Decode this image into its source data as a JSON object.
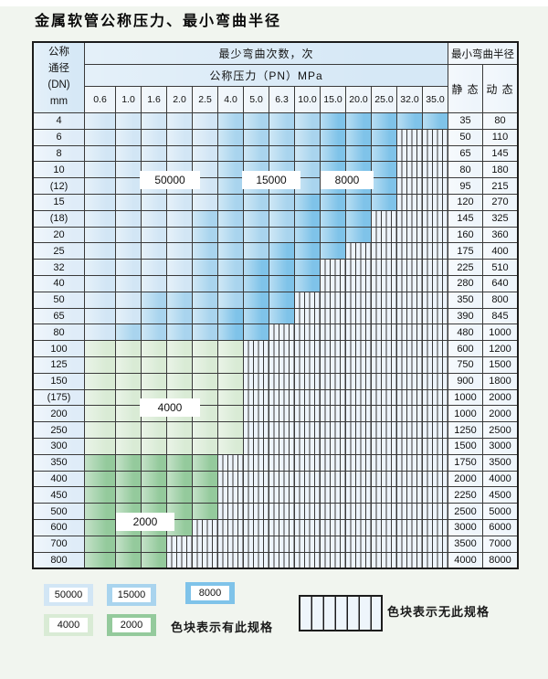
{
  "title": "金属软管公称压力、最小弯曲半径",
  "table": {
    "corner_lines": [
      "公称",
      "通径",
      "(DN)",
      "mm"
    ],
    "bend_times_header": "最少弯曲次数，次",
    "pressure_header": "公称压力（PN）MPa",
    "pressure_columns": [
      "0.6",
      "1.0",
      "1.6",
      "2.0",
      "2.5",
      "4.0",
      "5.0",
      "6.3",
      "10.0",
      "15.0",
      "20.0",
      "25.0",
      "32.0",
      "35.0"
    ],
    "radius_header": "最小弯曲半径",
    "static_header": "静 态",
    "dynamic_header": "动 态",
    "rows": [
      {
        "dn": "4",
        "static": "35",
        "dynamic": "80",
        "bands": {
          "b50": 4,
          "b15": 8,
          "b8": 13
        }
      },
      {
        "dn": "6",
        "static": "50",
        "dynamic": "110",
        "bands": {
          "b50": 4,
          "b15": 8,
          "b8": 11
        }
      },
      {
        "dn": "8",
        "static": "65",
        "dynamic": "145",
        "bands": {
          "b50": 4,
          "b15": 8,
          "b8": 11
        }
      },
      {
        "dn": "10",
        "static": "80",
        "dynamic": "180",
        "bands": {
          "b50": 4,
          "b15": 8,
          "b8": 11
        }
      },
      {
        "dn": "(12)",
        "static": "95",
        "dynamic": "215",
        "bands": {
          "b50": 4,
          "b15": 8,
          "b8": 11
        }
      },
      {
        "dn": "15",
        "static": "120",
        "dynamic": "270",
        "bands": {
          "b50": 4,
          "b15": 7,
          "b8": 11
        }
      },
      {
        "dn": "(18)",
        "static": "145",
        "dynamic": "325",
        "bands": {
          "b50": 3,
          "b15": 7,
          "b8": 10
        }
      },
      {
        "dn": "20",
        "static": "160",
        "dynamic": "360",
        "bands": {
          "b50": 3,
          "b15": 7,
          "b8": 10
        }
      },
      {
        "dn": "25",
        "static": "175",
        "dynamic": "400",
        "bands": {
          "b50": 3,
          "b15": 6,
          "b8": 9
        }
      },
      {
        "dn": "32",
        "static": "225",
        "dynamic": "510",
        "bands": {
          "b50": 3,
          "b15": 5,
          "b8": 8
        }
      },
      {
        "dn": "40",
        "static": "280",
        "dynamic": "640",
        "bands": {
          "b50": 3,
          "b15": 5,
          "b8": 8
        }
      },
      {
        "dn": "50",
        "static": "350",
        "dynamic": "800",
        "bands": {
          "b50": 1,
          "b15": 5,
          "b8": 7
        }
      },
      {
        "dn": "65",
        "static": "390",
        "dynamic": "845",
        "bands": {
          "b50": 1,
          "b15": 4,
          "b8": 7
        }
      },
      {
        "dn": "80",
        "static": "480",
        "dynamic": "1000",
        "bands": {
          "b50": 0,
          "b15": 4,
          "b8": 6
        }
      },
      {
        "dn": "100",
        "static": "600",
        "dynamic": "1200",
        "bands": {
          "b4": 5
        }
      },
      {
        "dn": "125",
        "static": "750",
        "dynamic": "1500",
        "bands": {
          "b4": 5
        }
      },
      {
        "dn": "150",
        "static": "900",
        "dynamic": "1800",
        "bands": {
          "b4": 5
        }
      },
      {
        "dn": "(175)",
        "static": "1000",
        "dynamic": "2000",
        "bands": {
          "b4": 5
        }
      },
      {
        "dn": "200",
        "static": "1000",
        "dynamic": "2000",
        "bands": {
          "b4": 5
        }
      },
      {
        "dn": "250",
        "static": "1250",
        "dynamic": "2500",
        "bands": {
          "b4": 5
        }
      },
      {
        "dn": "300",
        "static": "1500",
        "dynamic": "3000",
        "bands": {
          "b4": 5
        }
      },
      {
        "dn": "350",
        "static": "1750",
        "dynamic": "3500",
        "bands": {
          "b2": 4
        }
      },
      {
        "dn": "400",
        "static": "2000",
        "dynamic": "4000",
        "bands": {
          "b2": 4
        }
      },
      {
        "dn": "450",
        "static": "2250",
        "dynamic": "4500",
        "bands": {
          "b2": 4
        }
      },
      {
        "dn": "500",
        "static": "2500",
        "dynamic": "5000",
        "bands": {
          "b2": 4
        }
      },
      {
        "dn": "600",
        "static": "3000",
        "dynamic": "6000",
        "bands": {
          "b2": 3
        }
      },
      {
        "dn": "700",
        "static": "3500",
        "dynamic": "7000",
        "bands": {
          "b2": 2
        }
      },
      {
        "dn": "800",
        "static": "4000",
        "dynamic": "8000",
        "bands": {
          "b2": 2
        }
      }
    ]
  },
  "zone_labels": [
    {
      "text": "50000"
    },
    {
      "text": "15000"
    },
    {
      "text": "8000"
    },
    {
      "text": "4000"
    },
    {
      "text": "2000"
    }
  ],
  "legend": {
    "swatches": [
      {
        "label": "50000",
        "color_key": "s50"
      },
      {
        "label": "15000",
        "color_key": "s15"
      },
      {
        "label": "8000",
        "color_key": "s8"
      },
      {
        "label": "4000",
        "color_key": "g4"
      },
      {
        "label": "2000",
        "color_key": "g2"
      }
    ],
    "has_spec_text": "色块表示有此规格",
    "no_spec_text": "色块表示无此规格"
  },
  "colors": {
    "s50": "#d2e6f5",
    "s15": "#a9d4ee",
    "s8": "#7fc3e9",
    "g4": "#d9ebd5",
    "g2": "#94ca9c",
    "hatch_bg": "#edf4fb",
    "header_bg": "#d6e8f6",
    "subheader_bg": "#edf4fa",
    "rowlabel_bg": "#dfecf8",
    "value_bg": "#eef5fb"
  }
}
